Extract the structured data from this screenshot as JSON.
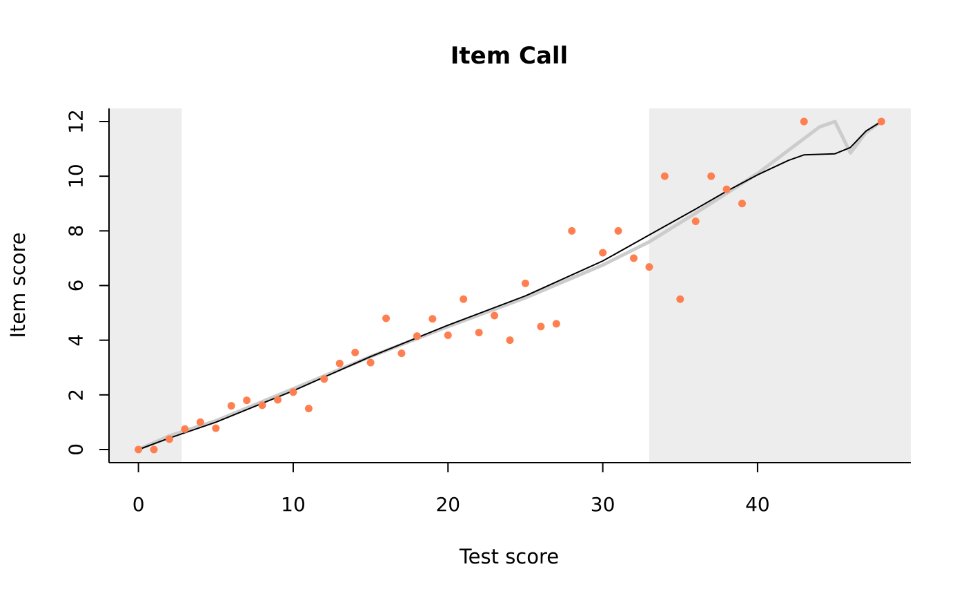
{
  "chart_data": {
    "type": "scatter",
    "title": "Item Call",
    "xlabel": "Test score",
    "ylabel": "Item score",
    "xlim": [
      -1.9,
      49.9
    ],
    "ylim": [
      -0.48,
      12.48
    ],
    "x_ticks": [
      0,
      10,
      20,
      30,
      40
    ],
    "y_ticks": [
      0,
      2,
      4,
      6,
      8,
      10,
      12
    ],
    "shaded_regions": [
      {
        "from": -1.9,
        "to": 2.8
      },
      {
        "from": 33,
        "to": 49.9
      }
    ],
    "colors": {
      "points": "#FF7F50",
      "shade": "#EDEDED",
      "smooth_line": "#CCCCCC",
      "fit_line": "#000000"
    },
    "series": [
      {
        "type": "scatter",
        "points": [
          [
            0,
            0
          ],
          [
            1,
            0
          ],
          [
            2,
            0.38
          ],
          [
            3,
            0.75
          ],
          [
            4,
            1.0
          ],
          [
            5,
            0.78
          ],
          [
            6,
            1.6
          ],
          [
            7,
            1.8
          ],
          [
            8,
            1.62
          ],
          [
            9,
            1.82
          ],
          [
            10,
            2.1
          ],
          [
            11,
            1.5
          ],
          [
            12,
            2.58
          ],
          [
            13,
            3.15
          ],
          [
            14,
            3.55
          ],
          [
            15,
            3.18
          ],
          [
            16,
            4.8
          ],
          [
            17,
            3.52
          ],
          [
            18,
            4.15
          ],
          [
            19,
            4.78
          ],
          [
            20,
            4.18
          ],
          [
            21,
            5.5
          ],
          [
            22,
            4.28
          ],
          [
            23,
            4.9
          ],
          [
            24,
            4.0
          ],
          [
            25,
            6.08
          ],
          [
            26,
            4.5
          ],
          [
            27,
            4.6
          ],
          [
            28,
            8.0
          ],
          [
            30,
            7.2
          ],
          [
            31,
            8.0
          ],
          [
            32,
            7.0
          ],
          [
            33,
            6.68
          ],
          [
            34,
            10.0
          ],
          [
            35,
            5.5
          ],
          [
            36,
            8.35
          ],
          [
            37,
            10.0
          ],
          [
            38,
            9.52
          ],
          [
            39,
            9.0
          ],
          [
            43,
            12.0
          ],
          [
            48,
            12.0
          ]
        ]
      },
      {
        "type": "line",
        "points": [
          [
            0,
            0
          ],
          [
            2,
            0.5
          ],
          [
            5,
            1.05
          ],
          [
            10,
            2.22
          ],
          [
            15,
            3.4
          ],
          [
            20,
            4.5
          ],
          [
            25,
            5.55
          ],
          [
            30,
            6.75
          ],
          [
            33,
            7.6
          ],
          [
            36,
            8.65
          ],
          [
            40,
            10.1
          ],
          [
            44,
            11.8
          ],
          [
            45,
            12.0
          ],
          [
            46,
            10.85
          ],
          [
            47,
            11.6
          ],
          [
            48,
            12.0
          ]
        ]
      },
      {
        "type": "line",
        "points": [
          [
            0,
            0
          ],
          [
            2,
            0.42
          ],
          [
            5,
            1.0
          ],
          [
            10,
            2.15
          ],
          [
            15,
            3.4
          ],
          [
            20,
            4.55
          ],
          [
            25,
            5.62
          ],
          [
            30,
            6.9
          ],
          [
            33,
            7.85
          ],
          [
            36,
            8.8
          ],
          [
            38,
            9.45
          ],
          [
            40,
            10.05
          ],
          [
            42,
            10.58
          ],
          [
            43,
            10.78
          ],
          [
            45,
            10.82
          ],
          [
            46,
            11.05
          ],
          [
            47,
            11.65
          ],
          [
            48,
            12.0
          ]
        ]
      }
    ]
  }
}
